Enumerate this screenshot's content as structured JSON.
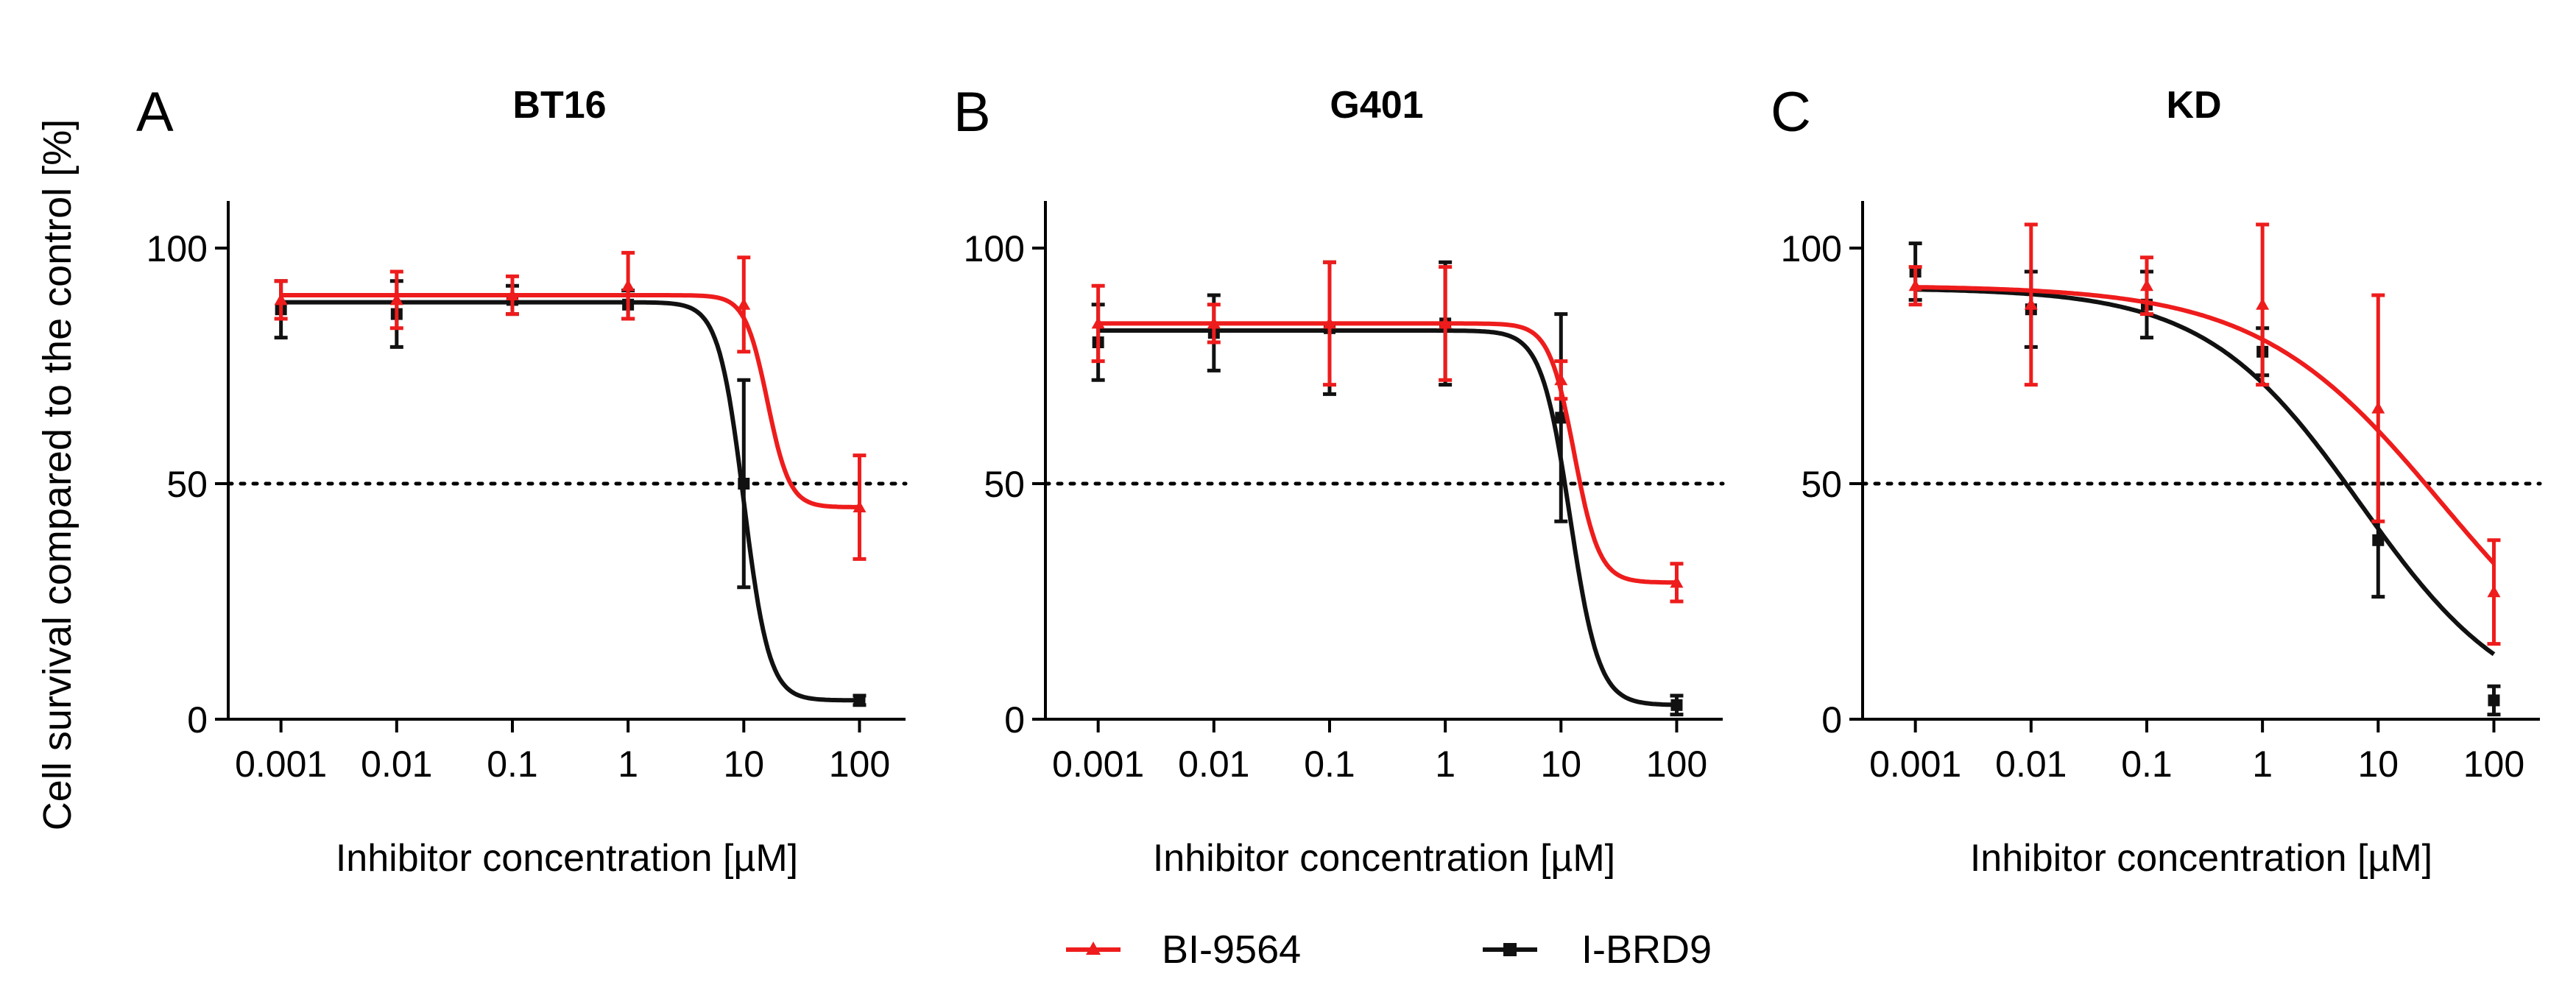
{
  "y_axis_title": "Cell survival compared to the control [%]",
  "legend": {
    "items": [
      {
        "label": "BI-9564",
        "color": "#ee1c1c",
        "marker": "triangle"
      },
      {
        "label": "I-BRD9",
        "color": "#111111",
        "marker": "square"
      }
    ]
  },
  "colors": {
    "bi9564": "#ee1c1c",
    "ibrd9": "#111111",
    "axis": "#000000",
    "reference": "#000000"
  },
  "chart_data": [
    {
      "panel": "A",
      "title": "BT16",
      "type": "line",
      "xscale": "log",
      "xlabel": "Inhibitor concentration  [µM]",
      "ylabel": "Cell survival compared to the control [%]",
      "xlim": [
        0.00035,
        250
      ],
      "ylim": [
        0,
        110
      ],
      "x_ticks": [
        0.001,
        0.01,
        0.1,
        1,
        10,
        100
      ],
      "x_tick_labels": [
        "0.001",
        "0.01",
        "0.1",
        "1",
        "10",
        "100"
      ],
      "y_ticks": [
        0,
        50,
        100
      ],
      "y_tick_labels": [
        "0",
        "50",
        "100"
      ],
      "reference_line": 50,
      "series": [
        {
          "name": "BI-9564",
          "x": [
            0.001,
            0.01,
            0.1,
            1,
            10,
            100
          ],
          "y": [
            89,
            89,
            90,
            92,
            88,
            45
          ],
          "err": [
            4,
            6,
            4,
            7,
            10,
            11
          ],
          "fit": {
            "top": 90,
            "bottom": 45,
            "ic50": 16,
            "hill": 4.5
          }
        },
        {
          "name": "I-BRD9",
          "x": [
            0.001,
            0.01,
            0.1,
            1,
            10,
            100
          ],
          "y": [
            87,
            86,
            89,
            88,
            50,
            4
          ],
          "err": [
            6,
            7,
            3,
            3,
            22,
            1
          ],
          "fit": {
            "top": 88.5,
            "bottom": 4,
            "ic50": 10,
            "hill": 4
          }
        }
      ]
    },
    {
      "panel": "B",
      "title": "G401",
      "type": "line",
      "xscale": "log",
      "xlabel": "Inhibitor concentration  [µM]",
      "ylabel": "Cell survival compared to the control [%]",
      "xlim": [
        0.00035,
        250
      ],
      "ylim": [
        0,
        110
      ],
      "x_ticks": [
        0.001,
        0.01,
        0.1,
        1,
        10,
        100
      ],
      "x_tick_labels": [
        "0.001",
        "0.01",
        "0.1",
        "1",
        "10",
        "100"
      ],
      "y_ticks": [
        0,
        50,
        100
      ],
      "y_tick_labels": [
        "0",
        "50",
        "100"
      ],
      "reference_line": 50,
      "series": [
        {
          "name": "BI-9564",
          "x": [
            0.001,
            0.01,
            0.1,
            1,
            10,
            100
          ],
          "y": [
            84,
            84,
            84,
            84,
            72,
            29
          ],
          "err": [
            8,
            4,
            13,
            12,
            4,
            4
          ],
          "fit": {
            "top": 84,
            "bottom": 29,
            "ic50": 13,
            "hill": 4
          }
        },
        {
          "name": "I-BRD9",
          "x": [
            0.001,
            0.01,
            0.1,
            1,
            10,
            100
          ],
          "y": [
            80,
            82,
            83,
            84,
            64,
            3
          ],
          "err": [
            8,
            8,
            14,
            13,
            22,
            2
          ],
          "fit": {
            "top": 82.5,
            "bottom": 3,
            "ic50": 12,
            "hill": 3.5
          }
        }
      ]
    },
    {
      "panel": "C",
      "title": "KD",
      "type": "line",
      "xscale": "log",
      "xlabel": "Inhibitor concentration  [µM]",
      "ylabel": "Cell survival compared to the control [%]",
      "xlim": [
        0.00035,
        250
      ],
      "ylim": [
        0,
        110
      ],
      "x_ticks": [
        0.001,
        0.01,
        0.1,
        1,
        10,
        100
      ],
      "x_tick_labels": [
        "0.001",
        "0.01",
        "0.1",
        "1",
        "10",
        "100"
      ],
      "y_ticks": [
        0,
        50,
        100
      ],
      "y_tick_labels": [
        "0",
        "50",
        "100"
      ],
      "reference_line": 50,
      "series": [
        {
          "name": "BI-9564",
          "x": [
            0.001,
            0.01,
            0.1,
            1,
            10,
            100
          ],
          "y": [
            92,
            88,
            92,
            88,
            66,
            27
          ],
          "err": [
            4,
            17,
            6,
            17,
            24,
            11
          ],
          "fit": {
            "top": 92,
            "bottom": 0,
            "ic50": 35,
            "hill": 0.55
          }
        },
        {
          "name": "I-BRD9",
          "x": [
            0.001,
            0.01,
            0.1,
            1,
            10,
            100
          ],
          "y": [
            95,
            87,
            88,
            78,
            38,
            4
          ],
          "err": [
            6,
            8,
            7,
            5,
            12,
            3
          ],
          "fit": {
            "top": 91.5,
            "bottom": 0,
            "ic50": 7,
            "hill": 0.65
          }
        }
      ]
    }
  ]
}
